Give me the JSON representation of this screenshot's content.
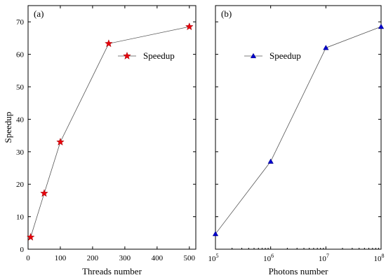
{
  "chart_data": [
    {
      "type": "line",
      "panel_label": "(a)",
      "xlabel": "Threads number",
      "ylabel": "Speedup",
      "xlim": [
        0,
        520
      ],
      "ylim": [
        0,
        75
      ],
      "xticks": [
        0,
        100,
        200,
        300,
        400,
        500
      ],
      "xtick_labels": [
        "0",
        "100",
        "200",
        "300",
        "400",
        "500"
      ],
      "yticks": [
        0,
        10,
        20,
        30,
        40,
        50,
        60,
        70
      ],
      "ytick_labels": [
        "0",
        "10",
        "20",
        "30",
        "40",
        "50",
        "60",
        "70"
      ],
      "series": [
        {
          "name": "Speedup",
          "marker": "star",
          "color": "#e8000b",
          "x": [
            8,
            50,
            100,
            250,
            500
          ],
          "y": [
            3.7,
            17.2,
            33.0,
            63.3,
            68.5
          ]
        }
      ],
      "legend_position": "top-right"
    },
    {
      "type": "line",
      "panel_label": "(b)",
      "xlabel": "Photons number",
      "ylabel": "",
      "x_scale": "log",
      "xlim": [
        100000,
        100000000
      ],
      "ylim": [
        0,
        75
      ],
      "xticks": [
        100000,
        1000000,
        10000000,
        100000000
      ],
      "xtick_labels": [
        {
          "base": "10",
          "exp": "5"
        },
        {
          "base": "10",
          "exp": "6"
        },
        {
          "base": "10",
          "exp": "7"
        },
        {
          "base": "10",
          "exp": "8"
        }
      ],
      "yticks": [
        0,
        10,
        20,
        30,
        40,
        50,
        60,
        70
      ],
      "ytick_labels": [],
      "series": [
        {
          "name": "Speedup",
          "marker": "triangle",
          "color": "#0000cc",
          "x": [
            100000,
            1000000,
            10000000,
            100000000
          ],
          "y": [
            4.7,
            27.0,
            62.0,
            68.5
          ]
        }
      ],
      "legend_position": "top-center"
    }
  ]
}
